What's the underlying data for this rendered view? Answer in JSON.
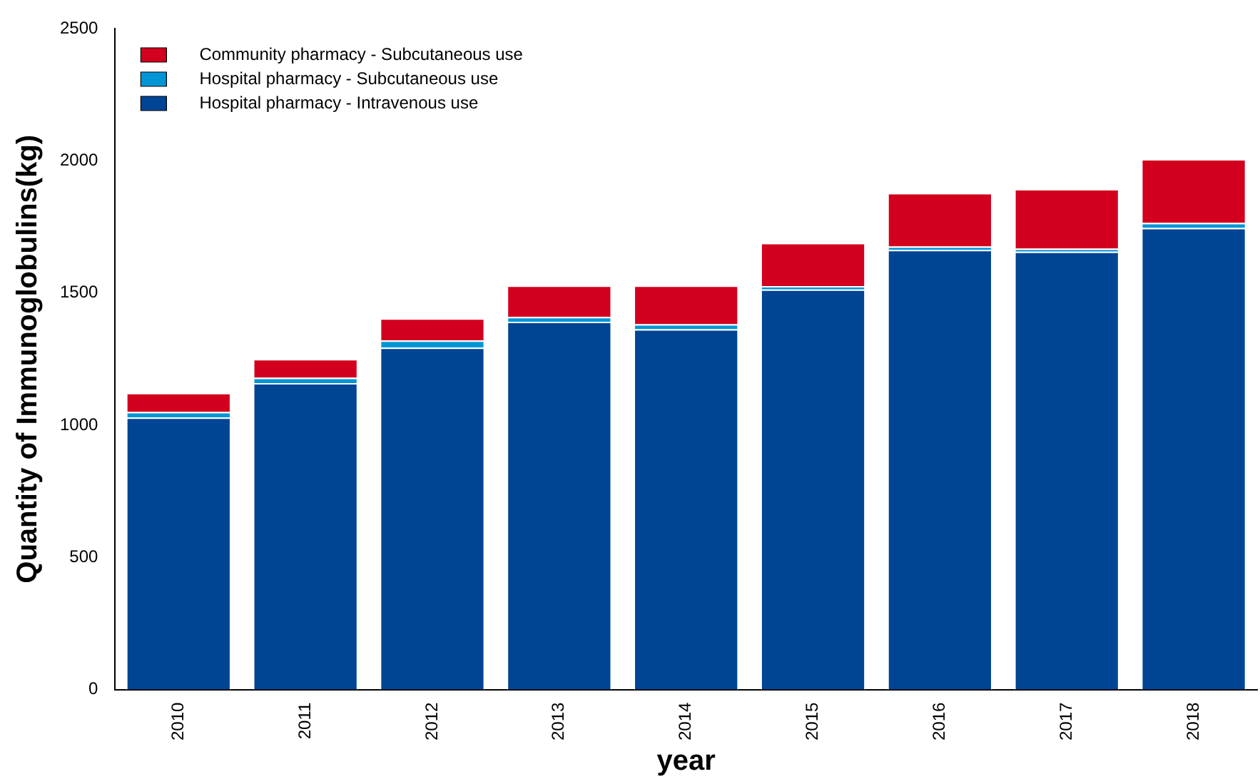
{
  "chart_data": {
    "type": "bar",
    "stacked": true,
    "xlabel": "year",
    "ylabel": "Quantity of Immunoglobulins(kg)",
    "categories": [
      "2010",
      "2011",
      "2012",
      "2013",
      "2014",
      "2015",
      "2016",
      "2017",
      "2018"
    ],
    "series": [
      {
        "name": "Hospital pharmacy - Intravenous use",
        "color": "#004494",
        "values": [
          1029,
          1159,
          1293,
          1391,
          1363,
          1513,
          1663,
          1656,
          1746
        ]
      },
      {
        "name": "Hospital pharmacy - Subcutaneous use",
        "color": "#0096d6",
        "values": [
          21,
          20,
          27,
          18,
          19,
          13,
          13,
          12,
          19
        ]
      },
      {
        "name": "Community pharmacy - Subcutaneous use",
        "color": "#d2001e",
        "values": [
          72,
          71,
          84,
          119,
          146,
          163,
          202,
          225,
          241
        ]
      }
    ],
    "ylim": [
      0,
      2500
    ],
    "yticks": [
      0,
      500,
      1000,
      1500,
      2000,
      2500
    ],
    "grid": false,
    "legend": "top left"
  }
}
